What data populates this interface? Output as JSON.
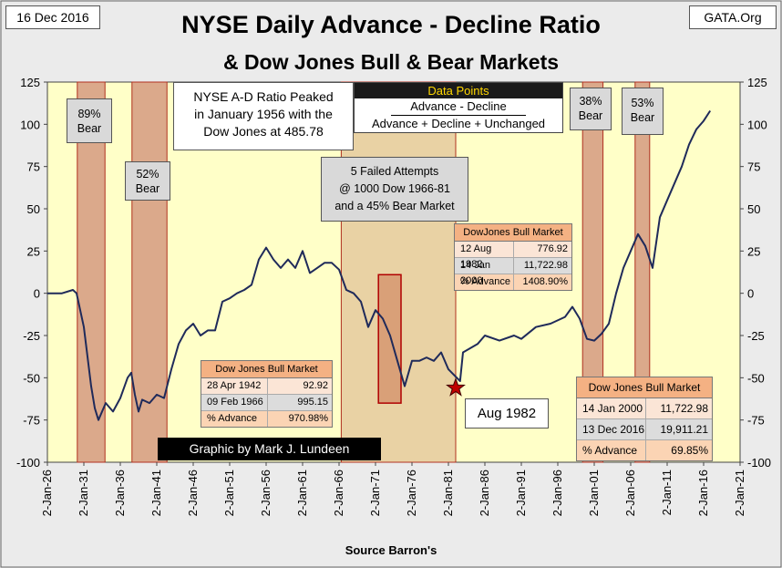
{
  "chart_data": {
    "type": "line",
    "title": "NYSE Daily Advance - Decline Ratio",
    "subtitle": "& Dow Jones Bull & Bear Markets",
    "date_label": "16 Dec 2016",
    "source_site": "GATA.Org",
    "x_label": "Source Barron's",
    "credit": "Graphic by Mark J. Lundeen",
    "xlim": [
      1926,
      2021
    ],
    "xticks": [
      {
        "value": 1926,
        "label": "2-Jan-26"
      },
      {
        "value": 1931,
        "label": "2-Jan-31"
      },
      {
        "value": 1936,
        "label": "2-Jan-36"
      },
      {
        "value": 1941,
        "label": "2-Jan-41"
      },
      {
        "value": 1946,
        "label": "2-Jan-46"
      },
      {
        "value": 1951,
        "label": "2-Jan-51"
      },
      {
        "value": 1956,
        "label": "2-Jan-56"
      },
      {
        "value": 1961,
        "label": "2-Jan-61"
      },
      {
        "value": 1966,
        "label": "2-Jan-66"
      },
      {
        "value": 1971,
        "label": "2-Jan-71"
      },
      {
        "value": 1976,
        "label": "2-Jan-76"
      },
      {
        "value": 1981,
        "label": "2-Jan-81"
      },
      {
        "value": 1986,
        "label": "2-Jan-86"
      },
      {
        "value": 1991,
        "label": "2-Jan-91"
      },
      {
        "value": 1996,
        "label": "2-Jan-96"
      },
      {
        "value": 2001,
        "label": "2-Jan-01"
      },
      {
        "value": 2006,
        "label": "2-Jan-06"
      },
      {
        "value": 2011,
        "label": "2-Jan-11"
      },
      {
        "value": 2016,
        "label": "2-Jan-16"
      },
      {
        "value": 2021,
        "label": "2-Jan-21"
      }
    ],
    "ylim": [
      -100,
      125
    ],
    "yticks": [
      -100,
      -75,
      -50,
      -25,
      0,
      25,
      50,
      75,
      100,
      125
    ],
    "x": [
      1926,
      1928,
      1929.5,
      1930,
      1931,
      1932,
      1932.5,
      1933,
      1934,
      1935,
      1936,
      1937,
      1937.5,
      1938,
      1938.5,
      1939,
      1940,
      1941,
      1942,
      1943,
      1944,
      1945,
      1946,
      1947,
      1948,
      1949,
      1950,
      1951,
      1952,
      1953,
      1954,
      1955,
      1956,
      1957,
      1958,
      1959,
      1960,
      1961,
      1962,
      1963,
      1964,
      1965,
      1966,
      1967,
      1968,
      1969,
      1970,
      1971,
      1972,
      1973,
      1974,
      1975,
      1976,
      1977,
      1978,
      1979,
      1980,
      1981,
      1982.6,
      1983,
      1985,
      1986,
      1988,
      1990,
      1991,
      1993,
      1995,
      1997,
      1998,
      1999,
      2000,
      2001,
      2002,
      2003,
      2004,
      2005,
      2006,
      2007,
      2008,
      2009,
      2010,
      2011,
      2012,
      2013,
      2014,
      2015,
      2016,
      2016.9
    ],
    "series": [
      {
        "name": "NYSE A-D Ratio",
        "color": "#1f2a5a",
        "values": [
          0,
          0,
          2,
          0,
          -20,
          -55,
          -68,
          -75,
          -65,
          -70,
          -62,
          -50,
          -47,
          -60,
          -70,
          -63,
          -65,
          -60,
          -62,
          -45,
          -30,
          -22,
          -18,
          -25,
          -22,
          -22,
          -5,
          -3,
          0,
          2,
          5,
          20,
          27,
          20,
          15,
          20,
          15,
          25,
          12,
          15,
          18,
          18,
          14,
          2,
          0,
          -5,
          -20,
          -10,
          -15,
          -25,
          -40,
          -55,
          -40,
          -40,
          -38,
          -40,
          -35,
          -45,
          -52,
          -35,
          -30,
          -25,
          -28,
          -25,
          -27,
          -20,
          -18,
          -14,
          -8,
          -15,
          -27,
          -28,
          -24,
          -18,
          0,
          15,
          25,
          35,
          28,
          15,
          45,
          55,
          65,
          75,
          88,
          97,
          102,
          108
        ]
      }
    ],
    "bands": [
      {
        "start": 1930.1,
        "end": 1933.9,
        "color": "#dba98b"
      },
      {
        "start": 1937.6,
        "end": 1942.4,
        "color": "#dba98b"
      },
      {
        "start": 1966.3,
        "end": 1982.0,
        "color": "#e9d2a4"
      },
      {
        "start": 1999.4,
        "end": 2002.2,
        "color": "#dba98b"
      },
      {
        "start": 2006.6,
        "end": 2008.6,
        "color": "#dba98b"
      }
    ],
    "highlight_box": {
      "start": 1971.4,
      "end": 1974.5,
      "top": 11,
      "bottom": -65,
      "color": "#d9a078"
    },
    "marker": {
      "x": 1982.0,
      "y": -56,
      "label": "Aug 1982"
    },
    "notes": {
      "bear89": [
        "89%",
        "Bear"
      ],
      "bear52": [
        "52%",
        "Bear"
      ],
      "bear38": [
        "38%",
        "Bear"
      ],
      "bear53": [
        "53%",
        "Bear"
      ],
      "peak": [
        "NYSE A-D Ratio Peaked",
        "in January 1956 with the",
        "Dow Jones at 485.78"
      ],
      "failed": [
        "5 Failed Attempts",
        "@ 1000  Dow 1966-81",
        "and a 45% Bear Market"
      ],
      "formula": [
        "Data Points",
        "Advance - Decline",
        "Advance + Decline + Unchanged"
      ]
    },
    "tables": [
      {
        "title": "Dow Jones Bull Market",
        "rows": [
          [
            "28 Apr 1942",
            "92.92"
          ],
          [
            "09 Feb 1966",
            "995.15"
          ],
          [
            "% Advance",
            "970.98%"
          ]
        ]
      },
      {
        "title": "DowJones Bull Market",
        "rows": [
          [
            "12 Aug 1982",
            "776.92"
          ],
          [
            "14 Jan 2000",
            "11,722.98"
          ],
          [
            "% Advance",
            "1408.90%"
          ]
        ]
      },
      {
        "title": "Dow Jones Bull Market",
        "rows": [
          [
            "14 Jan 2000",
            "11,722.98"
          ],
          [
            "13 Dec 2016",
            "19,911.21"
          ],
          [
            "% Advance",
            "69.85%"
          ]
        ]
      }
    ]
  }
}
